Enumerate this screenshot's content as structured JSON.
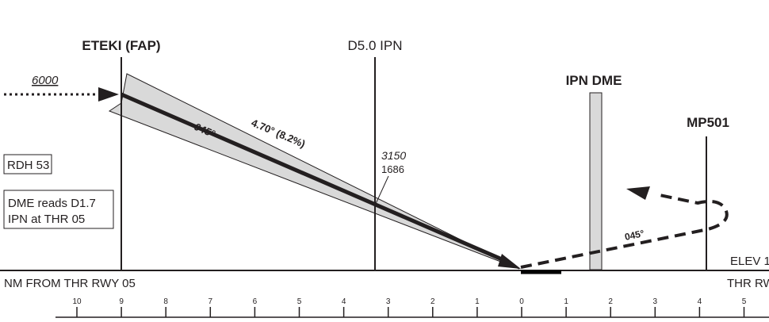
{
  "fixes": {
    "faf_name": "ETEKI (FAP)",
    "d5_name": "D5.0 IPN",
    "dme_name": "IPN DME",
    "map_name": "MP501"
  },
  "altitudes": {
    "faf_altitude": "6000",
    "d5_altitude": "3150",
    "d5_height": "1686"
  },
  "glidepath": {
    "course": "045°",
    "angle": "4.70° (8.2%)"
  },
  "notes": {
    "rdh": "RDH 53",
    "dme_note_line1": "DME reads D1.7",
    "dme_note_line2": "IPN at THR 05"
  },
  "missed_approach": {
    "course": "045°"
  },
  "threshold": {
    "elev_label": "ELEV 1",
    "thr_label": "THR RWY"
  },
  "distance_scale": {
    "title": "NM FROM THR RWY 05",
    "ticks": [
      "10",
      "9",
      "8",
      "7",
      "6",
      "5",
      "4",
      "3",
      "2",
      "1",
      "0",
      "1",
      "2",
      "3",
      "4",
      "5"
    ]
  },
  "colors": {
    "ink": "#231f20",
    "shade": "#d9d9d9"
  }
}
